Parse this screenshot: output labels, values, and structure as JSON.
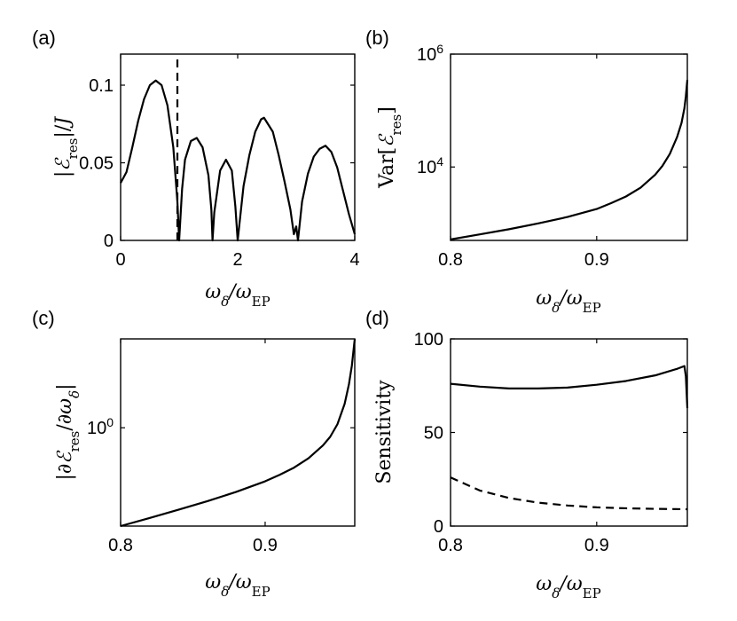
{
  "chart_data": [
    {
      "panel_label": "(a)",
      "type": "line",
      "xlabel": "ω_δ/ω_EP",
      "ylabel": "|ℰ_res|/J",
      "xlim": [
        0,
        4
      ],
      "ylim": [
        0,
        0.12
      ],
      "xticks": [
        "0",
        "2",
        "4"
      ],
      "yticks": [
        "0",
        "0.05",
        "0.1"
      ],
      "series": [
        {
          "style": "solid",
          "x": [
            0,
            0.1,
            0.2,
            0.3,
            0.4,
            0.5,
            0.6,
            0.7,
            0.8,
            0.9,
            0.97,
            1.0,
            1.05,
            1.1,
            1.2,
            1.3,
            1.4,
            1.5,
            1.55,
            1.57,
            1.6,
            1.7,
            1.8,
            1.9,
            1.96,
            2.0,
            2.1,
            2.2,
            2.3,
            2.4,
            2.45,
            2.6,
            2.7,
            2.8,
            2.9,
            2.96,
            3.0,
            3.03,
            3.1,
            3.2,
            3.3,
            3.4,
            3.5,
            3.6,
            3.7,
            3.8,
            3.9,
            4.0
          ],
          "y": [
            0.037,
            0.044,
            0.06,
            0.077,
            0.091,
            0.1,
            0.103,
            0.1,
            0.087,
            0.06,
            0.025,
            0,
            0.033,
            0.052,
            0.064,
            0.066,
            0.06,
            0.042,
            0.02,
            0,
            0.018,
            0.045,
            0.052,
            0.045,
            0.022,
            0,
            0.035,
            0.055,
            0.07,
            0.078,
            0.079,
            0.07,
            0.055,
            0.038,
            0.02,
            0.004,
            0.009,
            0,
            0.025,
            0.043,
            0.054,
            0.059,
            0.061,
            0.057,
            0.047,
            0.032,
            0.017,
            0.004
          ]
        },
        {
          "style": "dashed",
          "x": [
            0.97,
            0.97
          ],
          "y": [
            0,
            0.12
          ]
        }
      ]
    },
    {
      "panel_label": "(b)",
      "type": "line",
      "xlabel": "ω_δ/ω_EP",
      "ylabel": "Var[ℰ_res]",
      "xlim": [
        0.8,
        0.962
      ],
      "ylim": [
        500,
        1000000
      ],
      "yscale": "log",
      "xticks": [
        "0.8",
        "0.9"
      ],
      "yticks": [
        "10^4",
        "10^6"
      ],
      "series": [
        {
          "style": "solid",
          "x": [
            0.8,
            0.82,
            0.84,
            0.86,
            0.88,
            0.9,
            0.91,
            0.92,
            0.93,
            0.94,
            0.945,
            0.95,
            0.955,
            0.958,
            0.96,
            0.961,
            0.962
          ],
          "y": [
            520,
            640,
            790,
            1000,
            1300,
            1800,
            2300,
            3000,
            4300,
            7300,
            10500,
            17000,
            34000,
            60000,
            110000,
            180000,
            350000
          ]
        }
      ]
    },
    {
      "panel_label": "(c)",
      "type": "line",
      "xlabel": "ω_δ/ω_EP",
      "ylabel": "|∂ℰ_res/∂ω_δ|",
      "xlim": [
        0.8,
        0.962
      ],
      "ylim": [
        0.25,
        3.5
      ],
      "yscale": "log",
      "xticks": [
        "0.8",
        "0.9"
      ],
      "yticks": [
        "10^0"
      ],
      "series": [
        {
          "style": "solid",
          "x": [
            0.8,
            0.82,
            0.84,
            0.86,
            0.88,
            0.9,
            0.91,
            0.92,
            0.93,
            0.94,
            0.945,
            0.95,
            0.955,
            0.958,
            0.96,
            0.961,
            0.962
          ],
          "y": [
            0.25,
            0.28,
            0.315,
            0.355,
            0.405,
            0.47,
            0.515,
            0.57,
            0.65,
            0.78,
            0.88,
            1.05,
            1.4,
            1.85,
            2.4,
            2.9,
            3.5
          ]
        }
      ]
    },
    {
      "panel_label": "(d)",
      "type": "line",
      "xlabel": "ω_δ/ω_EP",
      "ylabel": "Sensitivity",
      "xlim": [
        0.8,
        0.962
      ],
      "ylim": [
        0,
        100
      ],
      "xticks": [
        "0.8",
        "0.9"
      ],
      "yticks": [
        "0",
        "50",
        "100"
      ],
      "series": [
        {
          "style": "solid",
          "x": [
            0.8,
            0.82,
            0.84,
            0.86,
            0.88,
            0.9,
            0.92,
            0.94,
            0.955,
            0.96,
            0.961,
            0.962
          ],
          "y": [
            76,
            74.5,
            73.5,
            73.5,
            74,
            75.5,
            77.5,
            80.5,
            84,
            85.5,
            80,
            63
          ]
        },
        {
          "style": "dashed",
          "x": [
            0.8,
            0.82,
            0.84,
            0.86,
            0.88,
            0.9,
            0.92,
            0.94,
            0.962
          ],
          "y": [
            26,
            19,
            15,
            12.5,
            11,
            10,
            9.5,
            9.2,
            9
          ]
        }
      ]
    }
  ]
}
